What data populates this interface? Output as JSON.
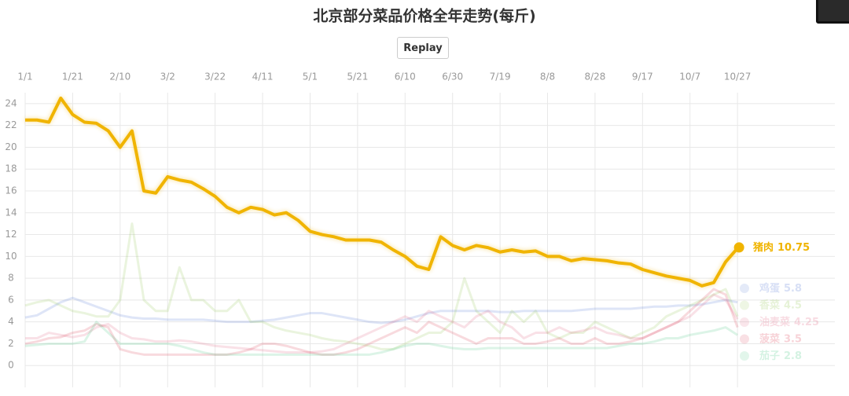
{
  "replay_button": "Replay",
  "chart_data": {
    "type": "line",
    "title": "北京部分菜品价格全年走势(每斤)",
    "x": [
      0,
      5,
      10,
      15,
      20,
      25,
      30,
      35,
      40,
      45,
      50,
      55,
      60,
      65,
      70,
      75,
      80,
      85,
      90,
      95,
      100,
      105,
      110,
      115,
      120,
      125,
      130,
      135,
      140,
      145,
      150,
      155,
      160,
      165,
      170,
      175,
      180,
      185,
      190,
      195,
      200,
      205,
      210,
      215,
      220,
      225,
      230,
      235,
      240,
      245,
      250,
      255,
      260,
      265,
      270,
      275,
      280,
      285,
      290,
      295,
      300
    ],
    "xlim": [
      0,
      341
    ],
    "xticks": [
      {
        "value": 0,
        "label": "1/1"
      },
      {
        "value": 20,
        "label": "1/21"
      },
      {
        "value": 40,
        "label": "2/10"
      },
      {
        "value": 60,
        "label": "3/2"
      },
      {
        "value": 80,
        "label": "3/22"
      },
      {
        "value": 100,
        "label": "4/11"
      },
      {
        "value": 120,
        "label": "5/1"
      },
      {
        "value": 140,
        "label": "5/21"
      },
      {
        "value": 160,
        "label": "6/10"
      },
      {
        "value": 180,
        "label": "6/30"
      },
      {
        "value": 200,
        "label": "7/19"
      },
      {
        "value": 220,
        "label": "8/8"
      },
      {
        "value": 240,
        "label": "8/28"
      },
      {
        "value": 260,
        "label": "9/17"
      },
      {
        "value": 280,
        "label": "10/7"
      },
      {
        "value": 300,
        "label": "10/27"
      }
    ],
    "ylim": [
      -2,
      25
    ],
    "yticks": [
      0,
      2,
      4,
      6,
      8,
      10,
      12,
      14,
      16,
      18,
      20,
      22,
      24
    ],
    "grid": true,
    "series": [
      {
        "name": "鸡蛋",
        "color": "#4a6fd0",
        "faded": true,
        "values": [
          4.4,
          4.6,
          5.2,
          5.8,
          6.2,
          5.8,
          5.4,
          5.0,
          4.6,
          4.4,
          4.3,
          4.3,
          4.2,
          4.2,
          4.2,
          4.2,
          4.1,
          4.0,
          4.0,
          4.0,
          4.1,
          4.2,
          4.4,
          4.6,
          4.8,
          4.8,
          4.6,
          4.4,
          4.2,
          4.0,
          3.9,
          4.0,
          4.2,
          4.5,
          4.8,
          5.0,
          5.0,
          5.0,
          5.0,
          5.0,
          4.9,
          4.9,
          5.0,
          5.0,
          5.0,
          5.0,
          5.0,
          5.1,
          5.2,
          5.2,
          5.2,
          5.2,
          5.3,
          5.4,
          5.4,
          5.5,
          5.5,
          5.6,
          5.8,
          6.0,
          5.8
        ]
      },
      {
        "name": "香菜",
        "color": "#8bc34a",
        "faded": true,
        "values": [
          5.5,
          5.8,
          6.0,
          5.5,
          5.0,
          4.8,
          4.5,
          4.5,
          6,
          13,
          6,
          5,
          5,
          9,
          6,
          6,
          5,
          5,
          6,
          4,
          4,
          3.5,
          3.2,
          3.0,
          2.8,
          2.5,
          2.3,
          2.2,
          2.0,
          1.8,
          1.5,
          1.5,
          2,
          2.5,
          3,
          3,
          4,
          8,
          5,
          4,
          3,
          5,
          4,
          5,
          3,
          2.5,
          3,
          3,
          4,
          3.5,
          3,
          2.5,
          3,
          3.5,
          4.5,
          5,
          5.5,
          6,
          6.5,
          7,
          4.5
        ]
      },
      {
        "name": "油麦菜",
        "color": "#e05a7a",
        "faded": true,
        "values": [
          2.5,
          2.5,
          3.0,
          2.8,
          2.6,
          2.8,
          3.5,
          3.8,
          3.0,
          2.5,
          2.4,
          2.2,
          2.2,
          2.3,
          2.2,
          2.0,
          1.8,
          1.7,
          1.6,
          1.5,
          1.4,
          1.3,
          1.2,
          1.2,
          1.2,
          1.3,
          1.5,
          2.0,
          2.5,
          3.0,
          3.5,
          4.0,
          4.5,
          4.0,
          5.0,
          4.5,
          4.0,
          3.5,
          4.5,
          5.0,
          4.0,
          3.5,
          2.5,
          3.0,
          3.0,
          3.5,
          3.0,
          3.2,
          3.5,
          3.0,
          2.8,
          2.5,
          2.5,
          3.0,
          3.5,
          4.0,
          4.5,
          5.5,
          6.5,
          6.0,
          4.25
        ]
      },
      {
        "name": "菠菜",
        "color": "#d9304a",
        "faded": true,
        "values": [
          2.0,
          2.2,
          2.5,
          2.6,
          3.0,
          3.2,
          3.8,
          3.5,
          1.5,
          1.2,
          1.0,
          1.0,
          1.0,
          1.0,
          1.0,
          1.0,
          1.0,
          1.0,
          1.2,
          1.5,
          2.0,
          2.0,
          1.8,
          1.5,
          1.2,
          1.0,
          1.0,
          1.2,
          1.5,
          2.0,
          2.5,
          3.0,
          3.5,
          3.0,
          4.0,
          3.5,
          3.0,
          2.5,
          2.0,
          2.5,
          2.5,
          2.5,
          2.0,
          2.0,
          2.2,
          2.5,
          2.0,
          2.0,
          2.5,
          2.0,
          2.0,
          2.2,
          2.5,
          3.0,
          3.5,
          4.0,
          5.0,
          6.0,
          7.0,
          6.5,
          3.5
        ]
      },
      {
        "name": "茄子",
        "color": "#3cc47c",
        "faded": true,
        "values": [
          1.8,
          1.9,
          2.0,
          2.0,
          2.0,
          2.2,
          4.0,
          3.0,
          2.0,
          2.0,
          2.0,
          2.0,
          2.0,
          1.8,
          1.5,
          1.2,
          1.0,
          1.0,
          1.0,
          1.0,
          1.0,
          1.0,
          1.0,
          1.0,
          1.0,
          1.0,
          1.0,
          1.0,
          1.0,
          1.0,
          1.2,
          1.5,
          1.8,
          2.0,
          2.0,
          1.8,
          1.6,
          1.5,
          1.5,
          1.6,
          1.6,
          1.6,
          1.6,
          1.6,
          1.6,
          1.6,
          1.6,
          1.6,
          1.6,
          1.6,
          1.8,
          2.0,
          2.0,
          2.2,
          2.5,
          2.5,
          2.8,
          3.0,
          3.2,
          3.5,
          2.8
        ]
      },
      {
        "name": "猪肉",
        "color": "#f0b400",
        "faded": false,
        "values": [
          22.5,
          22.5,
          22.3,
          24.5,
          23.0,
          22.3,
          22.2,
          21.5,
          20,
          21.5,
          16,
          15.8,
          17.3,
          17,
          16.8,
          16.2,
          15.5,
          14.5,
          14,
          14.5,
          14.3,
          13.8,
          14,
          13.3,
          12.3,
          12,
          11.8,
          11.5,
          11.5,
          11.5,
          11.3,
          10.6,
          10,
          9.1,
          8.8,
          11.8,
          11,
          10.6,
          11,
          10.8,
          10.4,
          10.6,
          10.4,
          10.5,
          10,
          10,
          9.6,
          9.8,
          9.7,
          9.6,
          9.4,
          9.3,
          8.8,
          8.5,
          8.2,
          8.0,
          7.8,
          7.3,
          7.6,
          9.5,
          10.75
        ]
      }
    ]
  }
}
